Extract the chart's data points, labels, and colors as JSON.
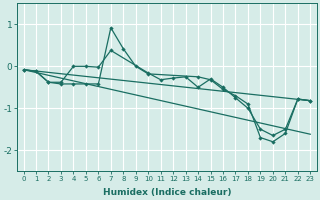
{
  "xlabel": "Humidex (Indice chaleur)",
  "ylabel": "",
  "xlim": [
    -0.5,
    23.5
  ],
  "ylim": [
    -2.5,
    1.5
  ],
  "yticks": [
    -2,
    -1,
    0,
    1
  ],
  "xticks": [
    0,
    1,
    2,
    3,
    4,
    5,
    6,
    7,
    8,
    9,
    10,
    11,
    12,
    13,
    14,
    15,
    16,
    17,
    18,
    19,
    20,
    21,
    22,
    23
  ],
  "background_color": "#d6ece8",
  "grid_color": "#ffffff",
  "line_color": "#1a6e62",
  "line1_x": [
    0,
    1,
    2,
    3,
    4,
    5,
    6,
    7,
    10,
    11,
    12,
    13,
    14,
    15,
    16,
    17,
    18,
    19,
    20,
    21,
    22,
    23
  ],
  "line1_y": [
    -0.08,
    -0.12,
    -0.38,
    -0.38,
    0.0,
    0.0,
    -0.02,
    0.38,
    -0.16,
    -0.32,
    -0.28,
    -0.25,
    -0.5,
    -0.3,
    -0.5,
    -0.75,
    -1.0,
    -1.5,
    -1.65,
    -1.5,
    -0.78,
    -0.82
  ],
  "line2_x": [
    0,
    1,
    2,
    3,
    4,
    5,
    6,
    7,
    8,
    9,
    10,
    14,
    15,
    16,
    17,
    18,
    19,
    20,
    21,
    22,
    23
  ],
  "line2_y": [
    -0.08,
    -0.12,
    -0.38,
    -0.42,
    -0.42,
    -0.42,
    -0.42,
    0.92,
    0.42,
    0.0,
    -0.18,
    -0.25,
    -0.32,
    -0.55,
    -0.7,
    -0.9,
    -1.7,
    -1.8,
    -1.6,
    -0.78,
    -0.82
  ],
  "trend1_x": [
    0,
    23
  ],
  "trend1_y": [
    -0.08,
    -0.82
  ],
  "trend2_x": [
    0,
    23
  ],
  "trend2_y": [
    -0.08,
    -1.62
  ]
}
